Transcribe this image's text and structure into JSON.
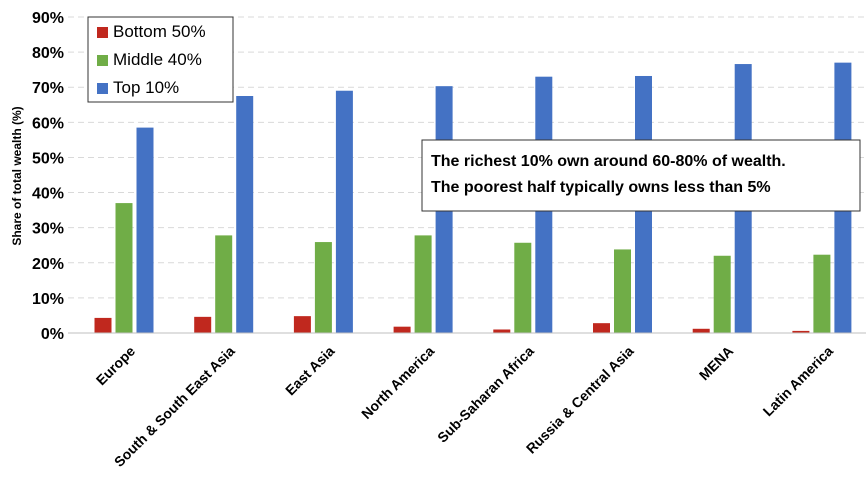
{
  "chart_data": {
    "type": "bar",
    "title": "",
    "xlabel": "",
    "ylabel": "Share of total wealth (%)",
    "ylim": [
      0,
      90
    ],
    "yticks": [
      "0%",
      "10%",
      "20%",
      "30%",
      "40%",
      "50%",
      "60%",
      "70%",
      "80%",
      "90%"
    ],
    "grid": true,
    "legend_position": "top-left",
    "categories": [
      "Europe",
      "South & South East Asia",
      "East Asia",
      "North America",
      "Sub-Saharan Africa",
      "Russia & Central Asia",
      "MENA",
      "Latin America"
    ],
    "series": [
      {
        "name": "Bottom 50%",
        "color": "#c0281e",
        "values": [
          4.3,
          4.6,
          4.8,
          1.8,
          1.0,
          2.8,
          1.2,
          0.6
        ]
      },
      {
        "name": "Middle 40%",
        "color": "#70ad47",
        "values": [
          37.0,
          27.8,
          25.9,
          27.8,
          25.7,
          23.8,
          22.0,
          22.3
        ]
      },
      {
        "name": "Top 10%",
        "color": "#4472c4",
        "values": [
          58.5,
          67.5,
          69.0,
          70.3,
          73.0,
          73.2,
          76.6,
          77.0
        ]
      }
    ],
    "annotation": {
      "line1": "The richest 10% own around 60-80% of wealth.",
      "line2": "The poorest half typically owns less than 5%"
    }
  }
}
